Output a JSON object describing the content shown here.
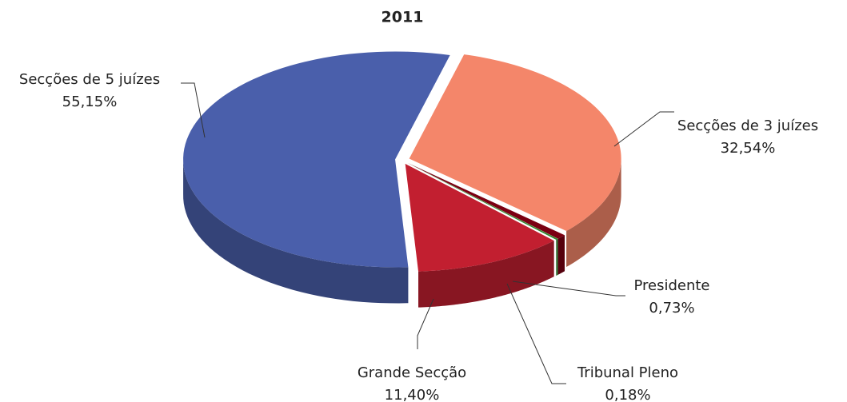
{
  "chart_data": {
    "type": "pie3d",
    "title": "2011",
    "categories": [
      "Secções de 3 juízes",
      "Presidente",
      "Tribunal Pleno",
      "Grande Secção",
      "Secções de 5 juízes"
    ],
    "values": [
      32.54,
      0.73,
      0.18,
      11.4,
      55.15
    ],
    "value_labels": [
      "32,54%",
      "0,73%",
      "0,18%",
      "11,40%",
      "55,15%"
    ],
    "colors": [
      "#f4866a",
      "#7a0012",
      "#2f8a2f",
      "#c21f30",
      "#4a5fab"
    ]
  }
}
